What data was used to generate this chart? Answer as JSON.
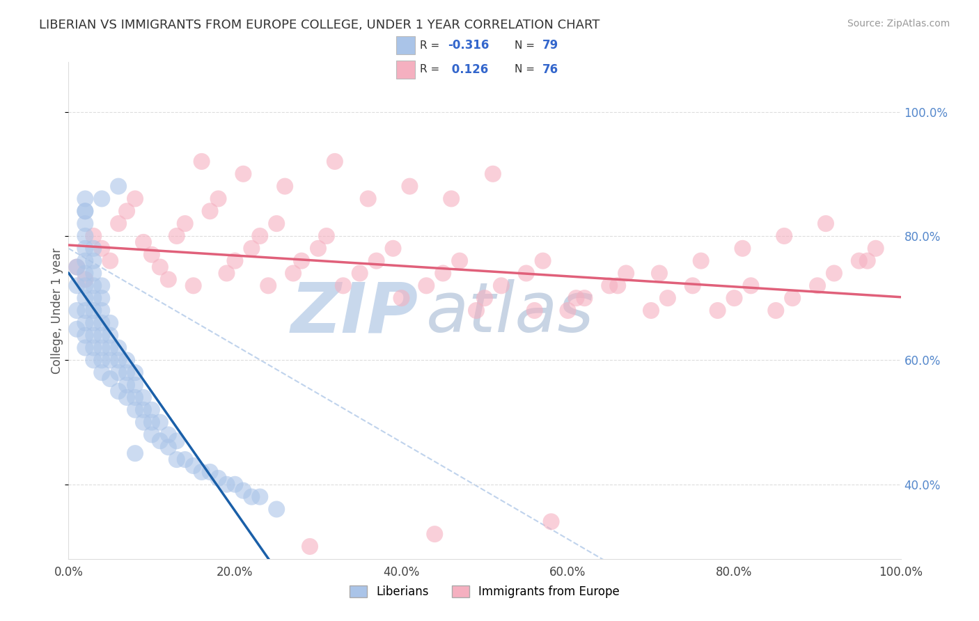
{
  "title": "LIBERIAN VS IMMIGRANTS FROM EUROPE COLLEGE, UNDER 1 YEAR CORRELATION CHART",
  "source": "Source: ZipAtlas.com",
  "ylabel": "College, Under 1 year",
  "xlim": [
    0.0,
    1.0
  ],
  "ylim": [
    0.28,
    1.08
  ],
  "xticks": [
    0.0,
    0.2,
    0.4,
    0.6,
    0.8,
    1.0
  ],
  "yticks": [
    0.4,
    0.6,
    0.8,
    1.0
  ],
  "xtick_labels": [
    "0.0%",
    "20.0%",
    "40.0%",
    "60.0%",
    "80.0%",
    "100.0%"
  ],
  "ytick_labels": [
    "40.0%",
    "60.0%",
    "80.0%",
    "100.0%"
  ],
  "legend_labels": [
    "Liberians",
    "Immigrants from Europe"
  ],
  "R_liberian": -0.316,
  "N_liberian": 79,
  "R_europe": 0.126,
  "N_europe": 76,
  "blue_color": "#aac4e8",
  "blue_edge_color": "#7aaad0",
  "blue_line_color": "#1a5fa8",
  "pink_color": "#f5b0c0",
  "pink_edge_color": "#e890a8",
  "pink_line_color": "#e0607a",
  "diag_color": "#b0c8e8",
  "watermark_zip_color": "#c8d8ec",
  "watermark_atlas_color": "#c8d4e4",
  "background_color": "#ffffff",
  "grid_color": "#dddddd",
  "liberian_x": [
    0.01,
    0.01,
    0.01,
    0.01,
    0.02,
    0.02,
    0.02,
    0.02,
    0.02,
    0.02,
    0.02,
    0.02,
    0.02,
    0.02,
    0.02,
    0.02,
    0.02,
    0.03,
    0.03,
    0.03,
    0.03,
    0.03,
    0.03,
    0.03,
    0.03,
    0.03,
    0.03,
    0.04,
    0.04,
    0.04,
    0.04,
    0.04,
    0.04,
    0.04,
    0.04,
    0.05,
    0.05,
    0.05,
    0.05,
    0.05,
    0.06,
    0.06,
    0.06,
    0.06,
    0.07,
    0.07,
    0.07,
    0.07,
    0.08,
    0.08,
    0.08,
    0.08,
    0.09,
    0.09,
    0.09,
    0.1,
    0.1,
    0.1,
    0.11,
    0.11,
    0.12,
    0.12,
    0.13,
    0.13,
    0.14,
    0.15,
    0.16,
    0.17,
    0.18,
    0.19,
    0.2,
    0.21,
    0.22,
    0.23,
    0.25,
    0.06,
    0.04,
    0.02,
    0.08
  ],
  "liberian_y": [
    0.65,
    0.68,
    0.72,
    0.75,
    0.62,
    0.64,
    0.66,
    0.68,
    0.7,
    0.72,
    0.74,
    0.76,
    0.78,
    0.8,
    0.82,
    0.84,
    0.86,
    0.6,
    0.62,
    0.64,
    0.66,
    0.68,
    0.7,
    0.72,
    0.74,
    0.76,
    0.78,
    0.58,
    0.6,
    0.62,
    0.64,
    0.66,
    0.68,
    0.7,
    0.72,
    0.57,
    0.6,
    0.62,
    0.64,
    0.66,
    0.55,
    0.58,
    0.6,
    0.62,
    0.54,
    0.56,
    0.58,
    0.6,
    0.52,
    0.54,
    0.56,
    0.58,
    0.5,
    0.52,
    0.54,
    0.48,
    0.5,
    0.52,
    0.47,
    0.5,
    0.46,
    0.48,
    0.44,
    0.47,
    0.44,
    0.43,
    0.42,
    0.42,
    0.41,
    0.4,
    0.4,
    0.39,
    0.38,
    0.38,
    0.36,
    0.88,
    0.86,
    0.84,
    0.45
  ],
  "europe_x": [
    0.01,
    0.02,
    0.03,
    0.04,
    0.05,
    0.06,
    0.07,
    0.08,
    0.09,
    0.1,
    0.11,
    0.12,
    0.13,
    0.14,
    0.15,
    0.17,
    0.18,
    0.19,
    0.2,
    0.22,
    0.23,
    0.24,
    0.25,
    0.27,
    0.28,
    0.3,
    0.31,
    0.33,
    0.35,
    0.37,
    0.39,
    0.4,
    0.43,
    0.45,
    0.47,
    0.49,
    0.5,
    0.52,
    0.55,
    0.57,
    0.6,
    0.62,
    0.65,
    0.67,
    0.7,
    0.72,
    0.75,
    0.78,
    0.8,
    0.82,
    0.85,
    0.87,
    0.9,
    0.92,
    0.95,
    0.97,
    0.16,
    0.21,
    0.26,
    0.32,
    0.36,
    0.41,
    0.46,
    0.51,
    0.56,
    0.61,
    0.66,
    0.71,
    0.76,
    0.81,
    0.86,
    0.91,
    0.96,
    0.29,
    0.44,
    0.58
  ],
  "europe_y": [
    0.75,
    0.73,
    0.8,
    0.78,
    0.76,
    0.82,
    0.84,
    0.86,
    0.79,
    0.77,
    0.75,
    0.73,
    0.8,
    0.82,
    0.72,
    0.84,
    0.86,
    0.74,
    0.76,
    0.78,
    0.8,
    0.72,
    0.82,
    0.74,
    0.76,
    0.78,
    0.8,
    0.72,
    0.74,
    0.76,
    0.78,
    0.7,
    0.72,
    0.74,
    0.76,
    0.68,
    0.7,
    0.72,
    0.74,
    0.76,
    0.68,
    0.7,
    0.72,
    0.74,
    0.68,
    0.7,
    0.72,
    0.68,
    0.7,
    0.72,
    0.68,
    0.7,
    0.72,
    0.74,
    0.76,
    0.78,
    0.92,
    0.9,
    0.88,
    0.92,
    0.86,
    0.88,
    0.86,
    0.9,
    0.68,
    0.7,
    0.72,
    0.74,
    0.76,
    0.78,
    0.8,
    0.82,
    0.76,
    0.3,
    0.32,
    0.34
  ]
}
